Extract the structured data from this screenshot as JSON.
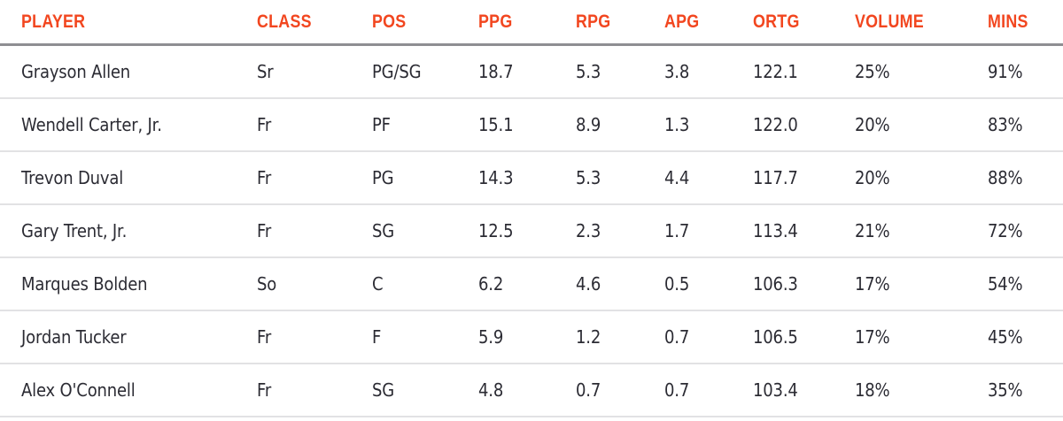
{
  "table": {
    "columns": [
      "PLAYER",
      "CLASS",
      "POS",
      "PPG",
      "RPG",
      "APG",
      "ORTG",
      "VOLUME",
      "MINS"
    ],
    "rows": [
      [
        "Grayson Allen",
        "Sr",
        "PG/SG",
        "18.7",
        "5.3",
        "3.8",
        "122.1",
        "25%",
        "91%"
      ],
      [
        "Wendell Carter, Jr.",
        "Fr",
        "PF",
        "15.1",
        "8.9",
        "1.3",
        "122.0",
        "20%",
        "83%"
      ],
      [
        "Trevon Duval",
        "Fr",
        "PG",
        "14.3",
        "5.3",
        "4.4",
        "117.7",
        "20%",
        "88%"
      ],
      [
        "Gary Trent, Jr.",
        "Fr",
        "SG",
        "12.5",
        "2.3",
        "1.7",
        "113.4",
        "21%",
        "72%"
      ],
      [
        "Marques Bolden",
        "So",
        "C",
        "6.2",
        "4.6",
        "0.5",
        "106.3",
        "17%",
        "54%"
      ],
      [
        "Jordan Tucker",
        "Fr",
        "F",
        "5.9",
        "1.2",
        "0.7",
        "106.5",
        "17%",
        "45%"
      ],
      [
        "Alex O'Connell",
        "Fr",
        "SG",
        "4.8",
        "0.7",
        "0.7",
        "103.4",
        "18%",
        "35%"
      ]
    ]
  },
  "colors": {
    "header": "#f2461f",
    "text": "#2b2b33",
    "header_rule": "#8e8e92",
    "row_rule": "#e2e2e4"
  }
}
